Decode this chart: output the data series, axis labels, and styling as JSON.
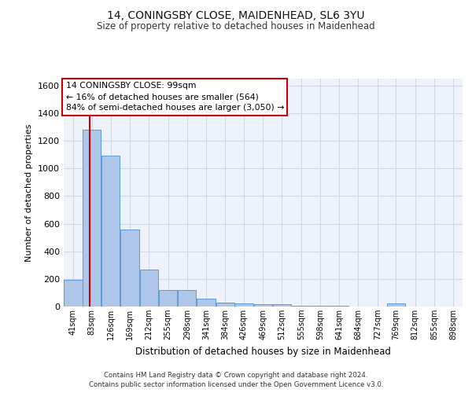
{
  "title1": "14, CONINGSBY CLOSE, MAIDENHEAD, SL6 3YU",
  "title2": "Size of property relative to detached houses in Maidenhead",
  "xlabel": "Distribution of detached houses by size in Maidenhead",
  "ylabel": "Number of detached properties",
  "footer1": "Contains HM Land Registry data © Crown copyright and database right 2024.",
  "footer2": "Contains public sector information licensed under the Open Government Licence v3.0.",
  "annotation_line1": "14 CONINGSBY CLOSE: 99sqm",
  "annotation_line2": "← 16% of detached houses are smaller (564)",
  "annotation_line3": "84% of semi-detached houses are larger (3,050) →",
  "bar_edges": [
    41,
    83,
    126,
    169,
    212,
    255,
    298,
    341,
    384,
    426,
    469,
    512,
    555,
    598,
    641,
    684,
    727,
    769,
    812,
    855,
    898
  ],
  "bar_heights": [
    195,
    1280,
    1090,
    555,
    265,
    120,
    120,
    55,
    30,
    20,
    15,
    15,
    5,
    5,
    5,
    0,
    0,
    25,
    0,
    0,
    0
  ],
  "bar_color": "#aec6e8",
  "bar_edge_color": "#5b9bd5",
  "red_line_x": 99,
  "red_line_color": "#cc0000",
  "ylim": [
    0,
    1650
  ],
  "yticks": [
    0,
    200,
    400,
    600,
    800,
    1000,
    1200,
    1400,
    1600
  ],
  "annotation_box_color": "#ffffff",
  "annotation_box_edge": "#cc0000",
  "grid_color": "#d0d8e8",
  "background_color": "#eef2fa",
  "fig_bg": "#ffffff"
}
